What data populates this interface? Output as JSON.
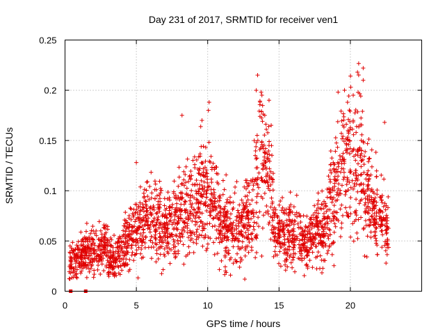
{
  "chart_data": {
    "type": "scatter",
    "title": "Day 231 of 2017, SRMTID for receiver ven1",
    "xlabel": "GPS time / hours",
    "ylabel": "SRMTID / TECUs",
    "xlim": [
      0,
      25
    ],
    "ylim": [
      0,
      0.25
    ],
    "xticks": [
      0,
      5,
      10,
      15,
      20
    ],
    "xtick_labels": [
      "0",
      "5",
      "10",
      "15",
      "20"
    ],
    "yticks": [
      0,
      0.05,
      0.1,
      0.15,
      0.2,
      0.25
    ],
    "ytick_labels": [
      "0",
      "0.05",
      "0.1",
      "0.15",
      "0.2",
      "0.25"
    ],
    "grid": true,
    "series_color": "#e00000",
    "zero_markers": [
      0.4,
      1.45
    ],
    "trend_segments": [
      {
        "x0": 0.3,
        "x1": 0.8,
        "y0": 0.03,
        "y1": 0.03
      },
      {
        "x0": 0.8,
        "x1": 3.0,
        "y0": 0.035,
        "y1": 0.045
      },
      {
        "x0": 3.0,
        "x1": 4.0,
        "y0": 0.03,
        "y1": 0.04
      },
      {
        "x0": 4.0,
        "x1": 6.0,
        "y0": 0.045,
        "y1": 0.075
      },
      {
        "x0": 6.0,
        "x1": 7.2,
        "y0": 0.07,
        "y1": 0.06
      },
      {
        "x0": 7.2,
        "x1": 9.5,
        "y0": 0.065,
        "y1": 0.095
      },
      {
        "x0": 9.5,
        "x1": 10.8,
        "y0": 0.1,
        "y1": 0.085
      },
      {
        "x0": 10.8,
        "x1": 12.5,
        "y0": 0.065,
        "y1": 0.06
      },
      {
        "x0": 12.5,
        "x1": 13.6,
        "y0": 0.065,
        "y1": 0.11
      },
      {
        "x0": 13.6,
        "x1": 14.6,
        "y0": 0.14,
        "y1": 0.09
      },
      {
        "x0": 14.6,
        "x1": 17.0,
        "y0": 0.06,
        "y1": 0.05
      },
      {
        "x0": 17.0,
        "x1": 18.5,
        "y0": 0.05,
        "y1": 0.07
      },
      {
        "x0": 18.5,
        "x1": 19.5,
        "y0": 0.08,
        "y1": 0.13
      },
      {
        "x0": 19.5,
        "x1": 21.0,
        "y0": 0.14,
        "y1": 0.12
      },
      {
        "x0": 21.0,
        "x1": 22.7,
        "y0": 0.1,
        "y1": 0.06
      }
    ],
    "outliers": [
      {
        "x": 13.5,
        "y": 0.215
      },
      {
        "x": 13.4,
        "y": 0.2
      },
      {
        "x": 13.8,
        "y": 0.195
      },
      {
        "x": 14.3,
        "y": 0.19
      },
      {
        "x": 14.0,
        "y": 0.175
      },
      {
        "x": 20.5,
        "y": 0.218
      },
      {
        "x": 20.9,
        "y": 0.222
      },
      {
        "x": 20.9,
        "y": 0.21
      },
      {
        "x": 19.8,
        "y": 0.188
      },
      {
        "x": 20.2,
        "y": 0.195
      },
      {
        "x": 10.1,
        "y": 0.188
      },
      {
        "x": 10.05,
        "y": 0.18
      },
      {
        "x": 8.2,
        "y": 0.175
      },
      {
        "x": 9.6,
        "y": 0.17
      },
      {
        "x": 22.4,
        "y": 0.168
      },
      {
        "x": 12.6,
        "y": 0.012
      },
      {
        "x": 11.6,
        "y": 0.016
      },
      {
        "x": 0.8,
        "y": 0.014
      },
      {
        "x": 1.1,
        "y": 0.018
      },
      {
        "x": 5.0,
        "y": 0.128
      },
      {
        "x": 18.8,
        "y": 0.128
      },
      {
        "x": 22.5,
        "y": 0.028
      },
      {
        "x": 21.0,
        "y": 0.035
      },
      {
        "x": 15.5,
        "y": 0.03
      }
    ]
  }
}
